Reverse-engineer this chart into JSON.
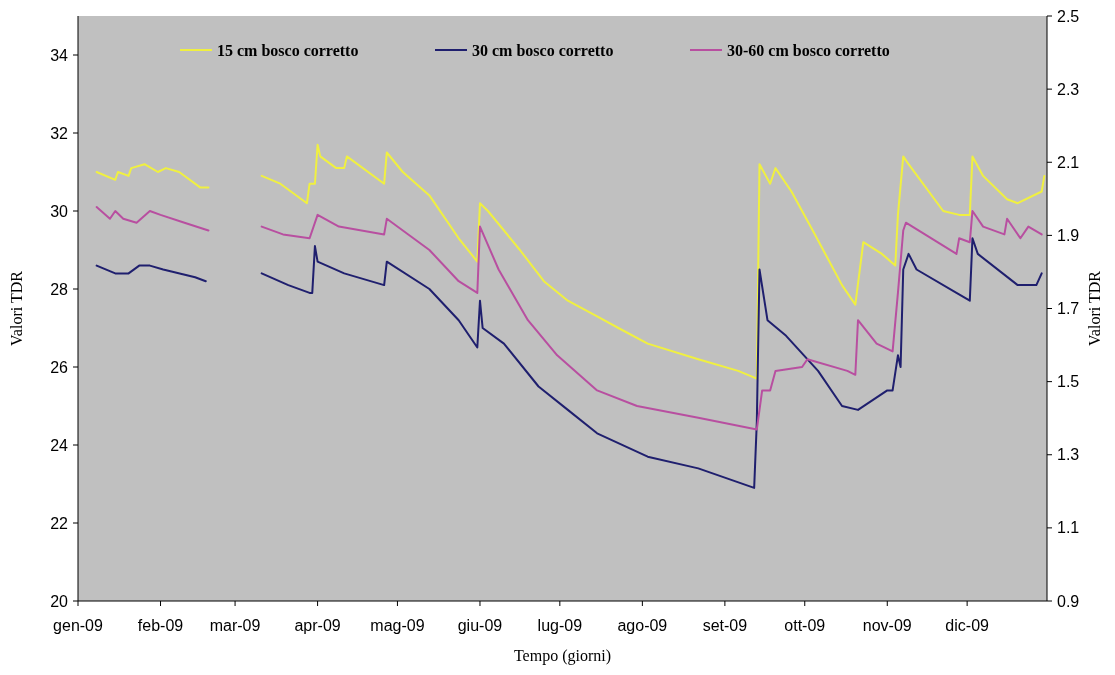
{
  "chart_data": {
    "type": "line",
    "xlabel": "Tempo (giorni)",
    "ylabel": "Valori TDR",
    "y2label": "Valori TDR",
    "xlim": [
      "2009-01-01",
      "2009-12-31"
    ],
    "xticks": [
      {
        "value": "2009-01-01",
        "label": "gen-09"
      },
      {
        "value": "2009-02-01",
        "label": "feb-09"
      },
      {
        "value": "2009-03-01",
        "label": "mar-09"
      },
      {
        "value": "2009-04-01",
        "label": "apr-09"
      },
      {
        "value": "2009-05-01",
        "label": "mag-09"
      },
      {
        "value": "2009-06-01",
        "label": "giu-09"
      },
      {
        "value": "2009-07-01",
        "label": "lug-09"
      },
      {
        "value": "2009-08-01",
        "label": "ago-09"
      },
      {
        "value": "2009-09-01",
        "label": "set-09"
      },
      {
        "value": "2009-10-01",
        "label": "ott-09"
      },
      {
        "value": "2009-11-01",
        "label": "nov-09"
      },
      {
        "value": "2009-12-01",
        "label": "dic-09"
      }
    ],
    "ylim": [
      20,
      35
    ],
    "yticks": [
      20,
      22,
      24,
      26,
      28,
      30,
      32,
      34
    ],
    "y2lim": [
      0.9,
      2.5
    ],
    "y2ticks": [
      0.9,
      1.1,
      1.3,
      1.5,
      1.7,
      1.9,
      2.1,
      2.3,
      2.5
    ],
    "legend": "top",
    "grid": false,
    "marker": "none",
    "line_style": "solid",
    "series": [
      {
        "name": "15 cm bosco corretto",
        "color": "#f0f040",
        "x": [
          "2009-01-08",
          "2009-01-15",
          "2009-01-16",
          "2009-01-20",
          "2009-01-21",
          "2009-01-26",
          "2009-01-31",
          "2009-02-03",
          "2009-02-08",
          "2009-02-16",
          "2009-02-19",
          "2009-03-01",
          "2009-03-11",
          "2009-03-18",
          "2009-03-28",
          "2009-03-29",
          "2009-03-31",
          "2009-04-01",
          "2009-04-02",
          "2009-04-08",
          "2009-04-11",
          "2009-04-12",
          "2009-04-26",
          "2009-04-27",
          "2009-05-03",
          "2009-05-13",
          "2009-05-24",
          "2009-05-31",
          "2009-06-01",
          "2009-06-04",
          "2009-06-16",
          "2009-06-25",
          "2009-07-04",
          "2009-07-15",
          "2009-07-23",
          "2009-08-03",
          "2009-08-22",
          "2009-09-06",
          "2009-09-13",
          "2009-09-14",
          "2009-09-18",
          "2009-09-20",
          "2009-09-26",
          "2009-10-04",
          "2009-10-15",
          "2009-10-20",
          "2009-10-23",
          "2009-10-30",
          "2009-11-04",
          "2009-11-05",
          "2009-11-07",
          "2009-11-09",
          "2009-11-22",
          "2009-11-28",
          "2009-12-02",
          "2009-12-03",
          "2009-12-07",
          "2009-12-16",
          "2009-12-20",
          "2009-12-29",
          "2009-12-30"
        ],
        "values": [
          31.0,
          30.8,
          31.0,
          30.9,
          31.1,
          31.2,
          31.0,
          31.1,
          31.0,
          30.6,
          30.6,
          null,
          30.9,
          30.7,
          30.2,
          30.7,
          30.7,
          31.7,
          31.4,
          31.1,
          31.1,
          31.4,
          30.7,
          31.5,
          31.0,
          30.4,
          29.3,
          28.7,
          30.2,
          30.0,
          29.0,
          28.2,
          27.7,
          27.3,
          27.0,
          26.6,
          26.2,
          25.9,
          25.7,
          31.2,
          30.7,
          31.1,
          30.5,
          29.5,
          28.1,
          27.6,
          29.2,
          28.9,
          28.6,
          29.9,
          31.4,
          31.2,
          30.0,
          29.9,
          29.9,
          31.4,
          30.9,
          30.3,
          30.2,
          30.5,
          30.9
        ]
      },
      {
        "name": "30 cm bosco corretto",
        "color": "#1f1f6e",
        "x": [
          "2009-01-08",
          "2009-01-15",
          "2009-01-20",
          "2009-01-24",
          "2009-01-28",
          "2009-02-02",
          "2009-02-14",
          "2009-02-18",
          "2009-03-01",
          "2009-03-11",
          "2009-03-21",
          "2009-03-29",
          "2009-03-30",
          "2009-03-31",
          "2009-04-01",
          "2009-04-11",
          "2009-04-26",
          "2009-04-27",
          "2009-05-13",
          "2009-05-24",
          "2009-05-31",
          "2009-06-01",
          "2009-06-02",
          "2009-06-10",
          "2009-06-23",
          "2009-07-04",
          "2009-07-15",
          "2009-08-03",
          "2009-08-22",
          "2009-09-12",
          "2009-09-13",
          "2009-09-14",
          "2009-09-17",
          "2009-09-24",
          "2009-10-06",
          "2009-10-15",
          "2009-10-21",
          "2009-11-01",
          "2009-11-03",
          "2009-11-05",
          "2009-11-06",
          "2009-11-07",
          "2009-11-09",
          "2009-11-12",
          "2009-11-27",
          "2009-12-02",
          "2009-12-03",
          "2009-12-05",
          "2009-12-20",
          "2009-12-27",
          "2009-12-29"
        ],
        "values": [
          28.6,
          28.4,
          28.4,
          28.6,
          28.6,
          28.5,
          28.3,
          28.2,
          null,
          28.4,
          28.1,
          27.9,
          27.9,
          29.1,
          28.7,
          28.4,
          28.1,
          28.7,
          28.0,
          27.2,
          26.5,
          27.7,
          27.0,
          26.6,
          25.5,
          24.9,
          24.3,
          23.7,
          23.4,
          22.9,
          24.6,
          28.5,
          27.2,
          26.8,
          25.9,
          25.0,
          24.9,
          25.4,
          25.4,
          26.3,
          26.0,
          28.5,
          28.9,
          28.5,
          27.9,
          27.7,
          29.3,
          28.9,
          28.1,
          28.1,
          28.4
        ]
      },
      {
        "name": "30-60 cm bosco corretto",
        "color": "#b84fa0",
        "x": [
          "2009-01-08",
          "2009-01-13",
          "2009-01-15",
          "2009-01-18",
          "2009-01-23",
          "2009-01-28",
          "2009-02-01",
          "2009-02-10",
          "2009-02-19",
          "2009-03-01",
          "2009-03-11",
          "2009-03-19",
          "2009-03-29",
          "2009-04-01",
          "2009-04-09",
          "2009-04-26",
          "2009-04-27",
          "2009-05-13",
          "2009-05-24",
          "2009-05-31",
          "2009-06-01",
          "2009-06-08",
          "2009-06-19",
          "2009-06-30",
          "2009-07-15",
          "2009-07-30",
          "2009-08-22",
          "2009-09-13",
          "2009-09-14",
          "2009-09-15",
          "2009-09-18",
          "2009-09-20",
          "2009-09-30",
          "2009-10-02",
          "2009-10-17",
          "2009-10-20",
          "2009-10-21",
          "2009-10-28",
          "2009-11-03",
          "2009-11-05",
          "2009-11-07",
          "2009-11-08",
          "2009-11-27",
          "2009-11-28",
          "2009-12-02",
          "2009-12-03",
          "2009-12-07",
          "2009-12-15",
          "2009-12-16",
          "2009-12-21",
          "2009-12-24",
          "2009-12-29"
        ],
        "values": [
          30.1,
          29.8,
          30.0,
          29.8,
          29.7,
          30.0,
          29.9,
          29.7,
          29.5,
          null,
          29.6,
          29.4,
          29.3,
          29.9,
          29.6,
          29.4,
          29.8,
          29.0,
          28.2,
          27.9,
          29.6,
          28.5,
          27.2,
          26.3,
          25.4,
          25.0,
          24.7,
          24.4,
          24.9,
          25.4,
          25.4,
          25.9,
          26.0,
          26.2,
          25.9,
          25.8,
          27.2,
          26.6,
          26.4,
          27.9,
          29.5,
          29.7,
          28.9,
          29.3,
          29.2,
          30.0,
          29.6,
          29.4,
          29.8,
          29.3,
          29.6,
          29.4
        ]
      }
    ]
  }
}
